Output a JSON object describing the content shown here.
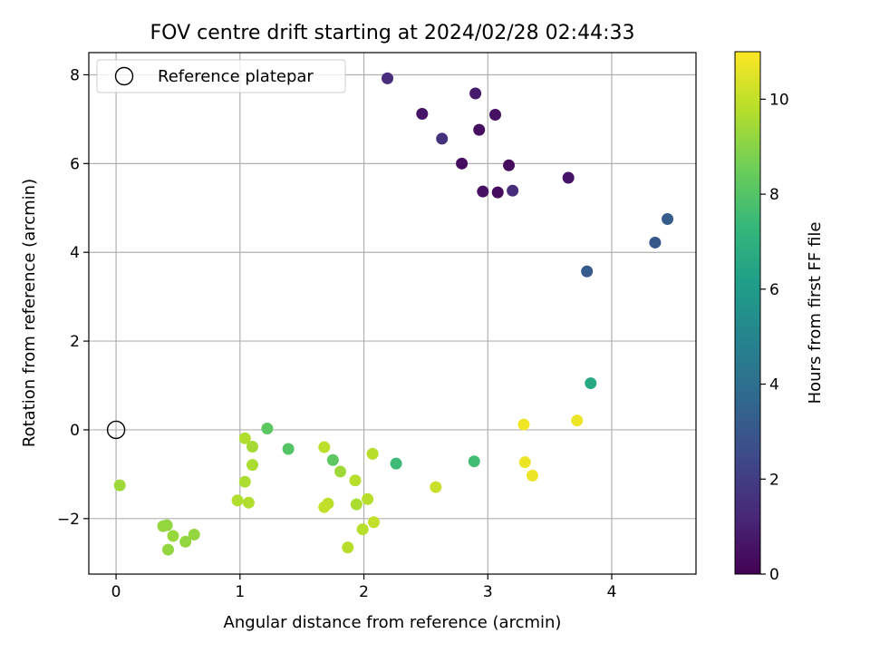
{
  "chart_data": {
    "type": "scatter",
    "title": "FOV centre drift starting at 2024/02/28 02:44:33",
    "xlabel": "Angular distance from reference (arcmin)",
    "ylabel": "Rotation from reference (arcmin)",
    "xlim": [
      -0.22,
      4.68
    ],
    "ylim": [
      -3.25,
      8.5
    ],
    "x_ticks": [
      0,
      1,
      2,
      3,
      4
    ],
    "y_ticks": [
      -2,
      0,
      2,
      4,
      6,
      8
    ],
    "x_tick_labels": [
      "0",
      "1",
      "2",
      "3",
      "4"
    ],
    "y_tick_labels": [
      "−2",
      "0",
      "2",
      "4",
      "6",
      "8"
    ],
    "grid": true,
    "legend": {
      "position": "top-left",
      "entries": [
        "Reference platepar"
      ]
    },
    "reference_point": {
      "x": 0,
      "y": 0,
      "label": "Reference platepar"
    },
    "colorbar": {
      "label": "Hours from first FF file",
      "range": [
        0,
        11
      ],
      "ticks": [
        0,
        2,
        4,
        6,
        8,
        10
      ],
      "tick_labels": [
        "0",
        "2",
        "4",
        "6",
        "8",
        "10"
      ],
      "colormap": [
        "#440154",
        "#482878",
        "#3e4989",
        "#31688e",
        "#26828e",
        "#1f9e89",
        "#35b779",
        "#6ece58",
        "#b5de2b",
        "#fde725"
      ]
    },
    "points": [
      {
        "x": 2.19,
        "y": 7.92,
        "hours": 1.4
      },
      {
        "x": 2.9,
        "y": 7.58,
        "hours": 0.8
      },
      {
        "x": 2.47,
        "y": 7.12,
        "hours": 0.6
      },
      {
        "x": 3.06,
        "y": 7.1,
        "hours": 0.5
      },
      {
        "x": 2.93,
        "y": 6.76,
        "hours": 0.4
      },
      {
        "x": 2.63,
        "y": 6.56,
        "hours": 1.6
      },
      {
        "x": 2.79,
        "y": 6.0,
        "hours": 0.4
      },
      {
        "x": 3.17,
        "y": 5.96,
        "hours": 0.3
      },
      {
        "x": 3.65,
        "y": 5.68,
        "hours": 0.6
      },
      {
        "x": 2.96,
        "y": 5.37,
        "hours": 0.5
      },
      {
        "x": 3.08,
        "y": 5.35,
        "hours": 0.3
      },
      {
        "x": 3.2,
        "y": 5.39,
        "hours": 1.4
      },
      {
        "x": 4.45,
        "y": 4.75,
        "hours": 3.2
      },
      {
        "x": 4.35,
        "y": 4.22,
        "hours": 3.0
      },
      {
        "x": 3.8,
        "y": 3.57,
        "hours": 3.1
      },
      {
        "x": 3.83,
        "y": 1.05,
        "hours": 6.6
      },
      {
        "x": 3.29,
        "y": 0.12,
        "hours": 10.8
      },
      {
        "x": 3.72,
        "y": 0.21,
        "hours": 10.7
      },
      {
        "x": 3.3,
        "y": -0.73,
        "hours": 10.7
      },
      {
        "x": 3.36,
        "y": -1.03,
        "hours": 10.7
      },
      {
        "x": 2.89,
        "y": -0.71,
        "hours": 7.6
      },
      {
        "x": 2.58,
        "y": -1.29,
        "hours": 10.1
      },
      {
        "x": 2.26,
        "y": -0.76,
        "hours": 7.5
      },
      {
        "x": 2.07,
        "y": -0.54,
        "hours": 9.8
      },
      {
        "x": 2.03,
        "y": -1.56,
        "hours": 9.8
      },
      {
        "x": 2.08,
        "y": -2.08,
        "hours": 10.0
      },
      {
        "x": 1.99,
        "y": -2.24,
        "hours": 9.8
      },
      {
        "x": 1.87,
        "y": -2.65,
        "hours": 9.8
      },
      {
        "x": 1.94,
        "y": -1.68,
        "hours": 9.6
      },
      {
        "x": 1.93,
        "y": -1.14,
        "hours": 9.8
      },
      {
        "x": 1.81,
        "y": -0.94,
        "hours": 9.4
      },
      {
        "x": 1.75,
        "y": -0.68,
        "hours": 8.2
      },
      {
        "x": 1.68,
        "y": -0.39,
        "hours": 9.9
      },
      {
        "x": 1.71,
        "y": -1.66,
        "hours": 9.9
      },
      {
        "x": 1.68,
        "y": -1.74,
        "hours": 10.0
      },
      {
        "x": 1.39,
        "y": -0.43,
        "hours": 8.0
      },
      {
        "x": 1.22,
        "y": 0.03,
        "hours": 8.2
      },
      {
        "x": 1.04,
        "y": -0.19,
        "hours": 9.7
      },
      {
        "x": 1.1,
        "y": -0.38,
        "hours": 9.5
      },
      {
        "x": 1.1,
        "y": -0.79,
        "hours": 9.6
      },
      {
        "x": 1.04,
        "y": -1.17,
        "hours": 9.6
      },
      {
        "x": 0.98,
        "y": -1.59,
        "hours": 9.7
      },
      {
        "x": 1.07,
        "y": -1.64,
        "hours": 9.7
      },
      {
        "x": 0.03,
        "y": -1.25,
        "hours": 9.4
      },
      {
        "x": 0.38,
        "y": -2.17,
        "hours": 9.2
      },
      {
        "x": 0.41,
        "y": -2.15,
        "hours": 9.2
      },
      {
        "x": 0.46,
        "y": -2.39,
        "hours": 9.3
      },
      {
        "x": 0.42,
        "y": -2.7,
        "hours": 9.2
      },
      {
        "x": 0.56,
        "y": -2.52,
        "hours": 9.2
      },
      {
        "x": 0.63,
        "y": -2.36,
        "hours": 9.2
      }
    ]
  }
}
